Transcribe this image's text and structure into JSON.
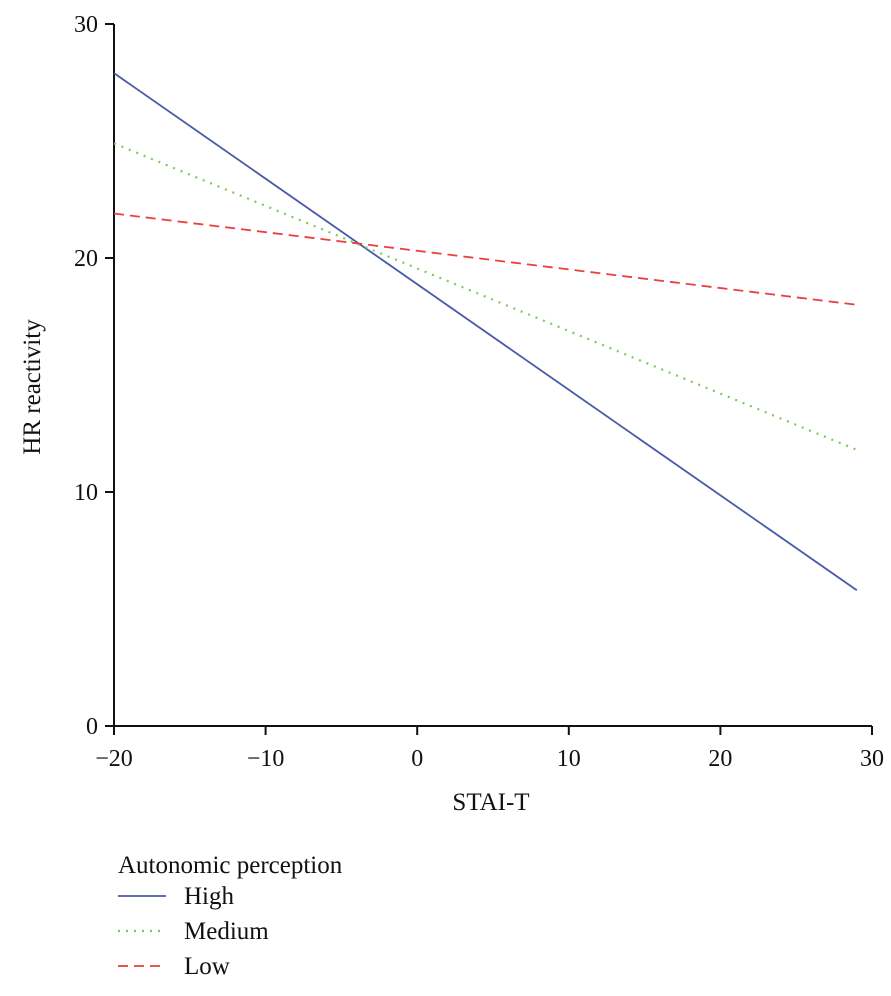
{
  "chart_data": {
    "type": "line",
    "title": "",
    "xlabel": "STAI-T",
    "ylabel": "HR reactivity",
    "xlim": [
      -20,
      30
    ],
    "ylim": [
      0,
      30
    ],
    "x_ticks": [
      -20,
      -10,
      0,
      10,
      20,
      30
    ],
    "x_tick_labels": [
      "−20",
      "−10",
      "0",
      "10",
      "20",
      "30"
    ],
    "y_ticks": [
      0,
      10,
      20,
      30
    ],
    "y_tick_labels": [
      "0",
      "10",
      "20",
      "30"
    ],
    "grid": false,
    "legend_title": "Autonomic perception",
    "legend_position": "bottom-left",
    "series": [
      {
        "name": "High",
        "style": "solid",
        "color": "#4a5aa8",
        "x": [
          -20,
          29
        ],
        "y": [
          27.9,
          5.8
        ]
      },
      {
        "name": "Medium",
        "style": "dotted",
        "color": "#7dc85a",
        "x": [
          -20,
          29
        ],
        "y": [
          24.9,
          11.8
        ]
      },
      {
        "name": "Low",
        "style": "dashed",
        "color": "#e8403c",
        "x": [
          -20,
          29
        ],
        "y": [
          21.9,
          18.0
        ]
      }
    ]
  }
}
